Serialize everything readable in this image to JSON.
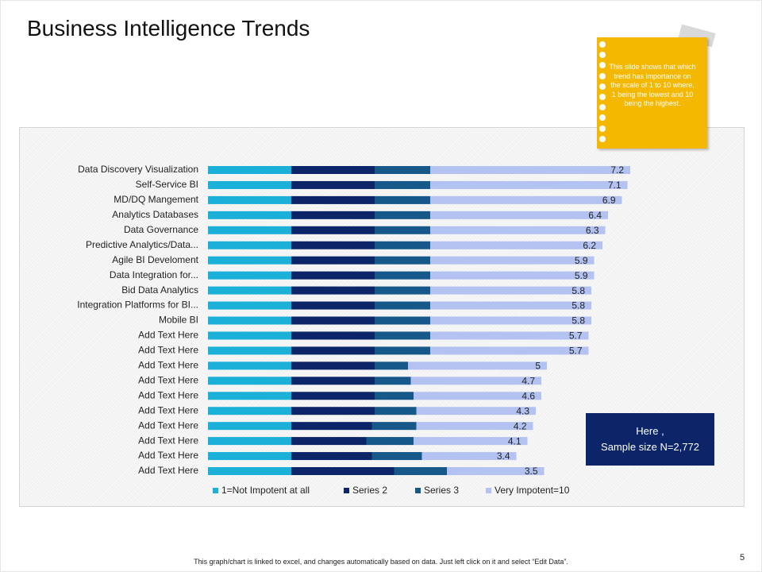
{
  "title": "Business Intelligence Trends",
  "note": "This slide shows that which trend has importance on the scale of 1 to 10 where, 1 being the lowest and 10 being the highest.",
  "callout": [
    "Here ,",
    "Sample size N=2,772"
  ],
  "footer": "This graph/chart is linked to excel, and changes automatically based on data. Just left click on it and select “Edit Data”.",
  "page_number": "5",
  "chart_data": {
    "type": "stacked_barh",
    "categories": [
      "Data Discovery Visualization",
      "Self-Service BI",
      "MD/DQ Mangement",
      "Analytics Databases",
      "Data Governance",
      "Predictive Analytics/Data...",
      "Agile BI Develoment",
      "Data Integration for...",
      "Bid Data Analytics",
      "Integration Platforms for BI...",
      "Mobile BI",
      "Add Text Here",
      "Add Text Here",
      "Add Text Here",
      "Add Text Here",
      "Add Text Here",
      "Add Text Here",
      "Add Text Here",
      "Add Text Here",
      "Add Text Here",
      "Add Text Here"
    ],
    "series": [
      {
        "name": "1=Not Impotent at all",
        "color": "#1ab0d8",
        "values": [
          3,
          3,
          3,
          3,
          3,
          3,
          3,
          3,
          3,
          3,
          3,
          3,
          3,
          3,
          3,
          3,
          3,
          3,
          3,
          3,
          3
        ]
      },
      {
        "name": "Series 2",
        "color": "#0c2468",
        "values": [
          3,
          3,
          3,
          3,
          3,
          3,
          3,
          3,
          3,
          3,
          3,
          3,
          3,
          3,
          3,
          3,
          3,
          2.9,
          2.7,
          2.9,
          3.7
        ]
      },
      {
        "name": "Series 3",
        "color": "#16588a",
        "values": [
          2,
          2,
          2,
          2,
          2,
          2,
          2,
          2,
          2,
          2,
          2,
          2,
          2,
          1.2,
          1.3,
          1.4,
          1.5,
          1.6,
          1.7,
          1.8,
          1.9
        ]
      },
      {
        "name": "Very Impotent=10",
        "color": "#b4c2f2",
        "values": [
          7.2,
          7.1,
          6.9,
          6.4,
          6.3,
          6.2,
          5.9,
          5.9,
          5.8,
          5.8,
          5.8,
          5.7,
          5.7,
          5,
          4.7,
          4.6,
          4.3,
          4.2,
          4.1,
          3.4,
          3.5
        ]
      }
    ],
    "labeled_series": 3,
    "xlim": [
      0,
      16
    ]
  }
}
